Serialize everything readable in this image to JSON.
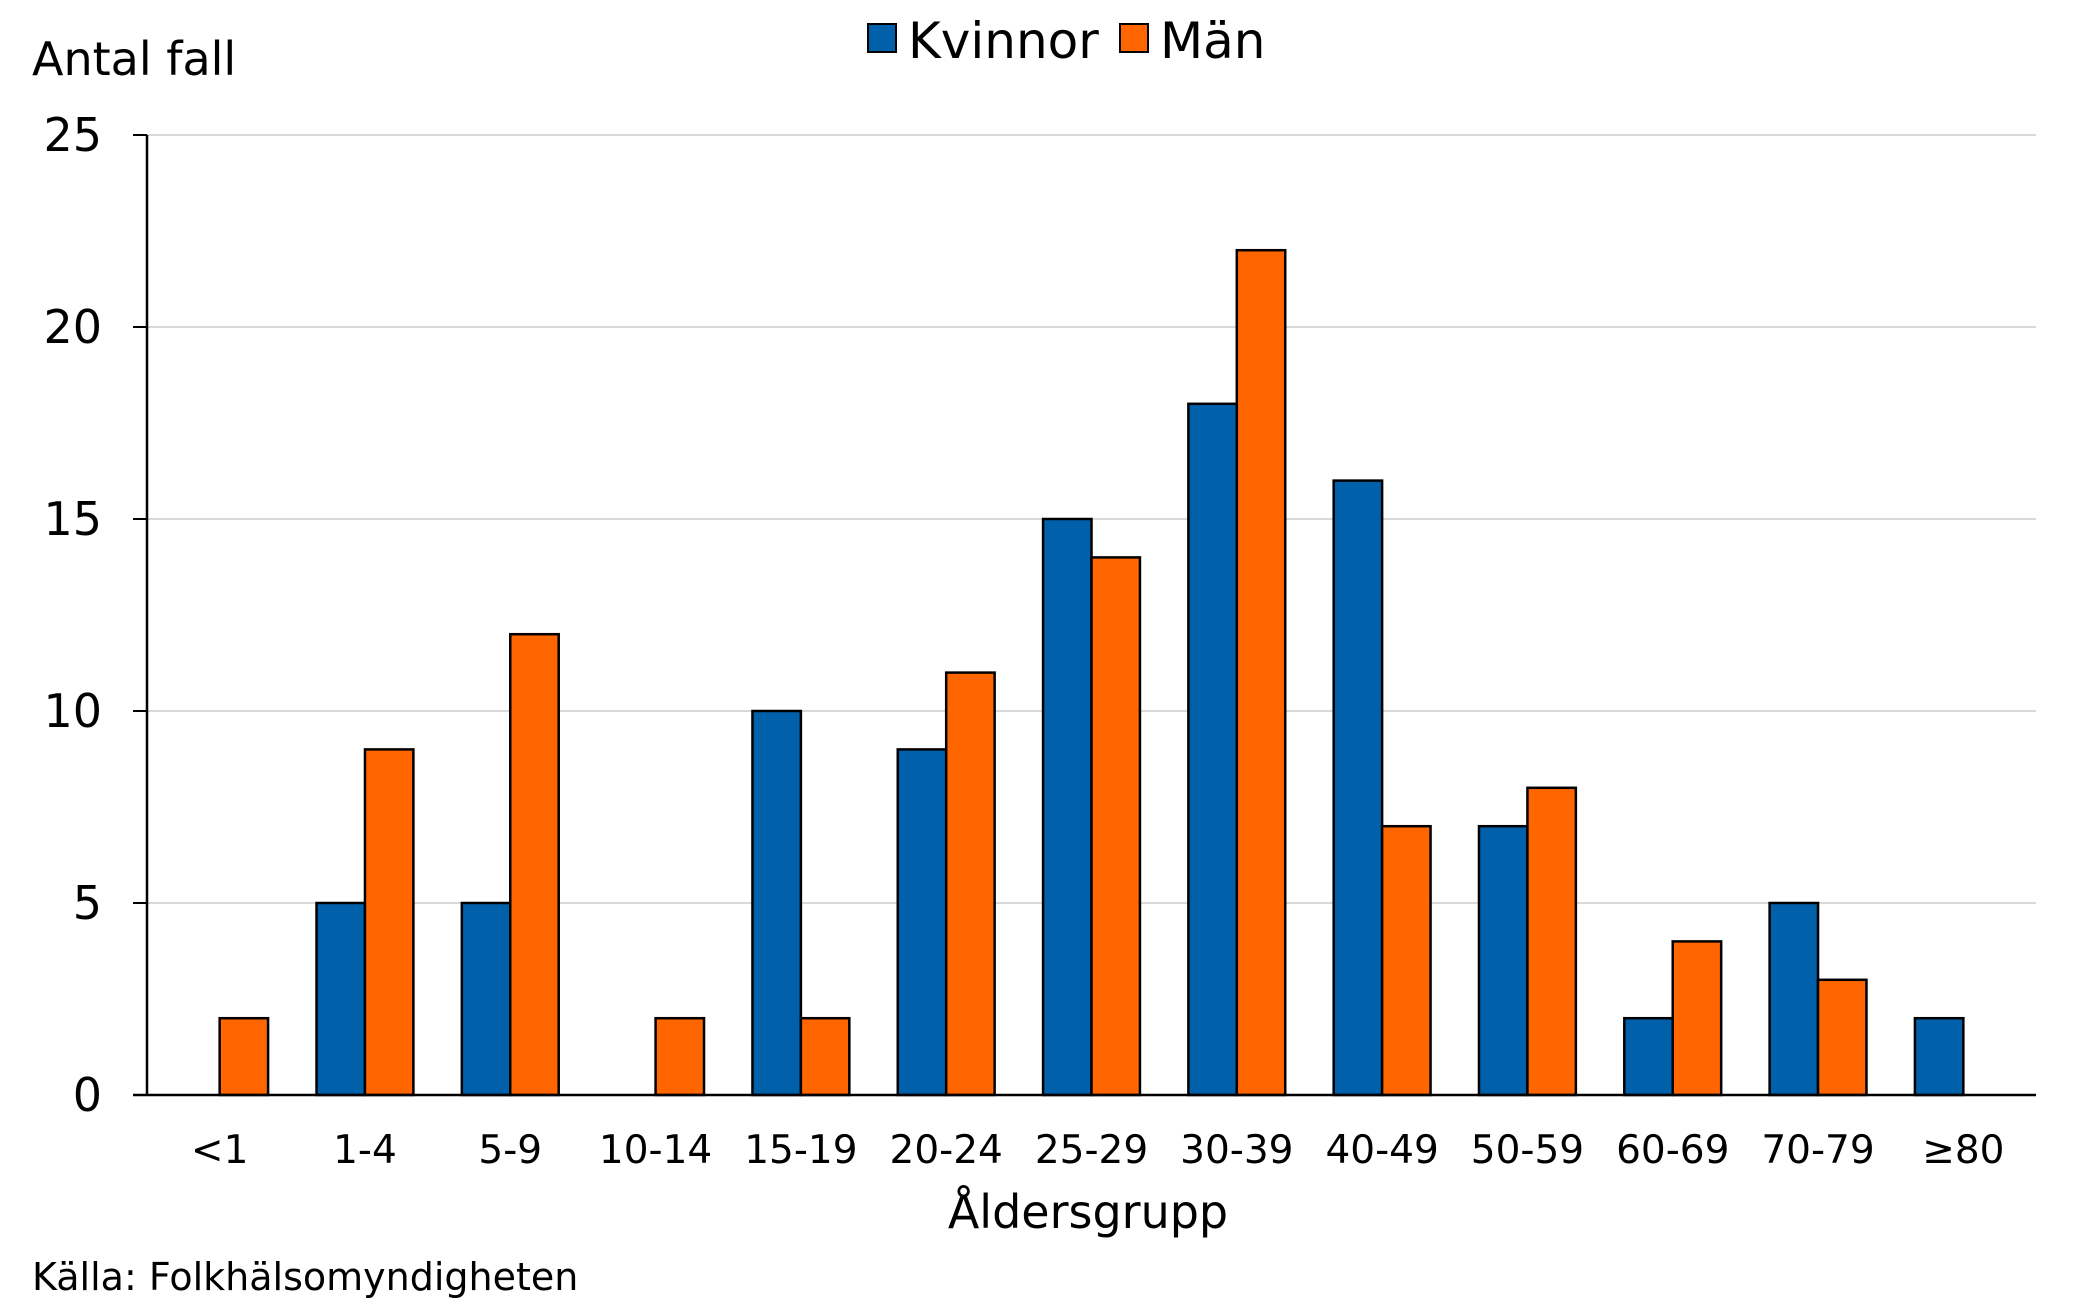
{
  "chart_data": {
    "type": "bar",
    "ylabel": "Antal fall",
    "xlabel": "Åldersgrupp",
    "source": "Källa: Folkhälsomyndigheten",
    "categories": [
      "<1",
      "1-4",
      "5-9",
      "10-14",
      "15-19",
      "20-24",
      "25-29",
      "30-39",
      "40-49",
      "50-59",
      "60-69",
      "70-79",
      "≥80"
    ],
    "series": [
      {
        "name": "Kvinnor",
        "color": "#0060aa",
        "values": [
          0,
          5,
          5,
          0,
          10,
          9,
          15,
          18,
          16,
          7,
          2,
          5,
          2
        ]
      },
      {
        "name": "Män",
        "color": "#ff6600",
        "values": [
          2,
          9,
          12,
          2,
          2,
          11,
          14,
          22,
          7,
          8,
          4,
          3,
          0
        ]
      }
    ],
    "ylim": [
      0,
      25
    ],
    "yticks": [
      0,
      5,
      10,
      15,
      20,
      25
    ],
    "grid": true,
    "legend_position": "top-center"
  }
}
